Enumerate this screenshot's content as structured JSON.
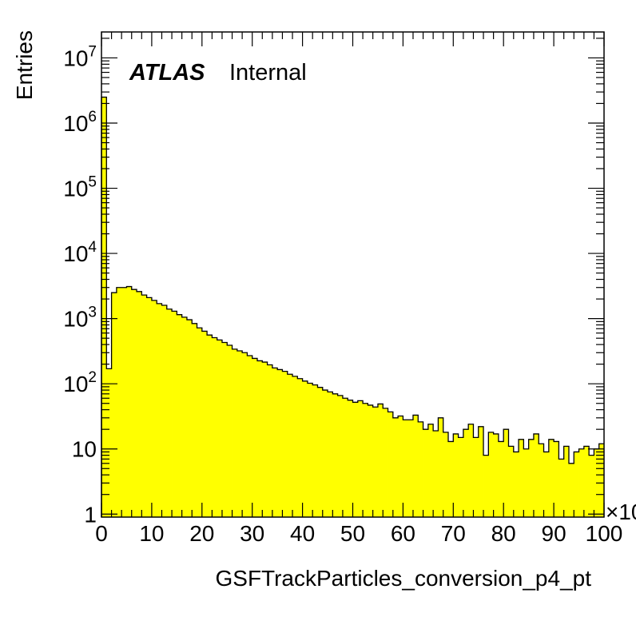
{
  "chart_data": {
    "type": "histogram",
    "title": "",
    "xlabel": "GSFTrackParticles_conversion_p4_pt",
    "ylabel": "Entries",
    "x_multiplier_label": "×10",
    "atlas_label": "ATLAS",
    "atlas_status": "Internal",
    "xlim": [
      0,
      100
    ],
    "ylim": [
      0.9,
      25000000
    ],
    "y_scale": "log",
    "fill_color": "#ffff00",
    "line_color": "#000000",
    "x_tick_labels": [
      "0",
      "10",
      "20",
      "30",
      "40",
      "50",
      "60",
      "70",
      "80",
      "90",
      "100"
    ],
    "x_ticks": [
      0,
      10,
      20,
      30,
      40,
      50,
      60,
      70,
      80,
      90,
      100
    ],
    "y_ticks": [
      {
        "value": 1,
        "base": "1",
        "exp": ""
      },
      {
        "value": 10,
        "base": "10",
        "exp": ""
      },
      {
        "value": 100,
        "base": "10",
        "exp": "2"
      },
      {
        "value": 1000,
        "base": "10",
        "exp": "3"
      },
      {
        "value": 10000,
        "base": "10",
        "exp": "4"
      },
      {
        "value": 100000,
        "base": "10",
        "exp": "5"
      },
      {
        "value": 1000000,
        "base": "10",
        "exp": "6"
      },
      {
        "value": 10000000,
        "base": "10",
        "exp": "7"
      }
    ],
    "bin_width": 1,
    "values": [
      2500000,
      170,
      2500,
      3000,
      3000,
      3100,
      2800,
      2600,
      2300,
      2100,
      1900,
      1700,
      1600,
      1400,
      1300,
      1150,
      1050,
      960,
      840,
      720,
      640,
      560,
      510,
      470,
      430,
      390,
      340,
      320,
      300,
      270,
      245,
      225,
      215,
      195,
      175,
      165,
      155,
      140,
      130,
      120,
      110,
      102,
      96,
      88,
      80,
      75,
      70,
      66,
      60,
      56,
      52,
      55,
      50,
      47,
      44,
      49,
      42,
      37,
      30,
      32,
      28,
      28,
      33,
      26,
      20,
      24,
      19,
      30,
      18,
      13,
      17,
      15,
      20,
      24,
      15,
      22,
      8,
      18,
      17,
      13,
      20,
      11,
      9,
      14,
      10,
      14,
      17,
      12,
      9,
      14,
      13,
      7,
      11,
      6,
      9,
      10,
      11,
      8,
      10,
      12
    ]
  }
}
